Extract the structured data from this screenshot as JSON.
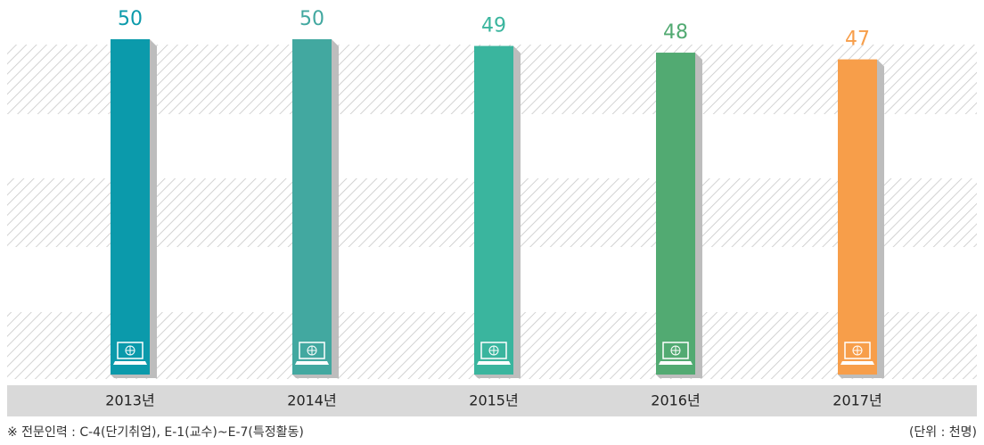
{
  "chart_data": {
    "type": "bar",
    "categories": [
      "2013년",
      "2014년",
      "2015년",
      "2016년",
      "2017년"
    ],
    "values": [
      50,
      50,
      49,
      48,
      47
    ],
    "colors": [
      "#0b9aab",
      "#42a8a0",
      "#3ab59e",
      "#52aa72",
      "#f79e4a"
    ],
    "ylim": [
      0,
      50
    ],
    "note": "※ 전문인력 : C-4(단기취업), E-1(교수)~E-7(특정활동)",
    "unit": "(단위 : 천명)"
  }
}
